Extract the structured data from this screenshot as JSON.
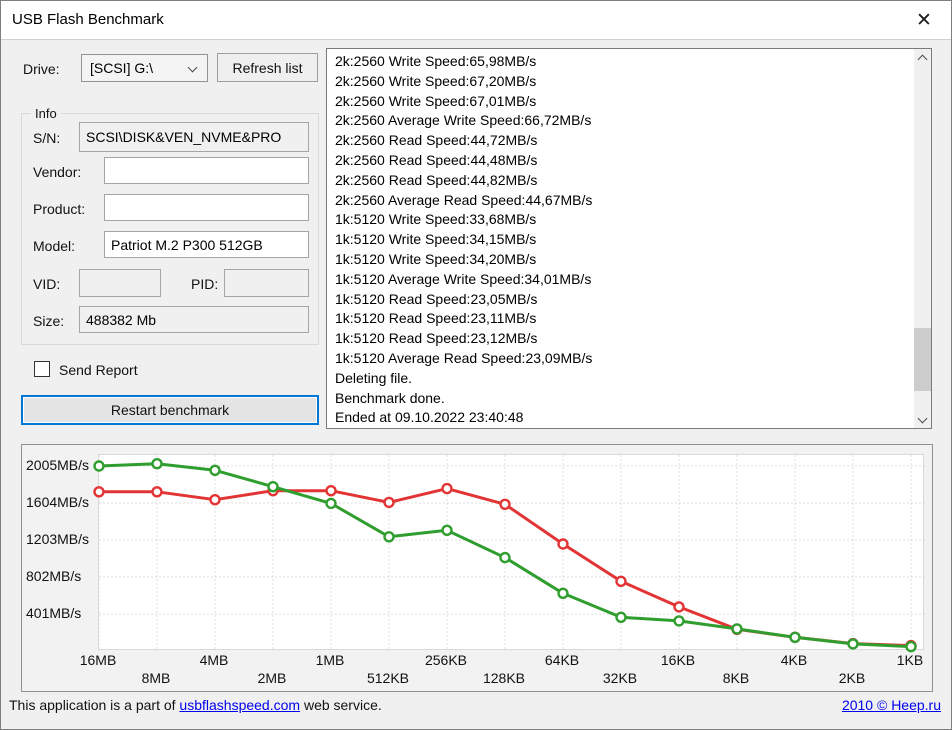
{
  "window": {
    "title": "USB Flash Benchmark",
    "close_glyph": "✕"
  },
  "controls": {
    "drive_label": "Drive:",
    "drive_value": "[SCSI] G:\\",
    "refresh_button": "Refresh list",
    "send_report_label": "Send Report",
    "restart_button": "Restart benchmark"
  },
  "info": {
    "legend": "Info",
    "sn_label": "S/N:",
    "sn_value": "SCSI\\DISK&VEN_NVME&PRO",
    "vendor_label": "Vendor:",
    "vendor_value": "",
    "product_label": "Product:",
    "product_value": "",
    "model_label": "Model:",
    "model_value": "Patriot M.2 P300 512GB",
    "vid_label": "VID:",
    "vid_value": "",
    "pid_label": "PID:",
    "pid_value": "",
    "size_label": "Size:",
    "size_value": "488382 Mb"
  },
  "log": {
    "lines": [
      "2k:2560 Write Speed:65,98MB/s",
      "2k:2560 Write Speed:67,20MB/s",
      "2k:2560 Write Speed:67,01MB/s",
      "2k:2560 Average Write Speed:66,72MB/s",
      "2k:2560 Read Speed:44,72MB/s",
      "2k:2560 Read Speed:44,48MB/s",
      "2k:2560 Read Speed:44,82MB/s",
      "2k:2560 Average Read Speed:44,67MB/s",
      "1k:5120 Write Speed:33,68MB/s",
      "1k:5120 Write Speed:34,15MB/s",
      "1k:5120 Write Speed:34,20MB/s",
      "1k:5120 Average Write Speed:34,01MB/s",
      "1k:5120 Read Speed:23,05MB/s",
      "1k:5120 Read Speed:23,11MB/s",
      "1k:5120 Read Speed:23,12MB/s",
      "1k:5120 Average Read Speed:23,09MB/s",
      "Deleting file.",
      "Benchmark done.",
      "Ended at 09.10.2022 23:40:48"
    ]
  },
  "chart_data": {
    "type": "line",
    "categories": [
      "16MB",
      "8MB",
      "4MB",
      "2MB",
      "1MB",
      "512KB",
      "256KB",
      "128KB",
      "64KB",
      "32KB",
      "16KB",
      "8KB",
      "4KB",
      "2KB",
      "1KB"
    ],
    "series": [
      {
        "name": "red-line",
        "color": "#e23434",
        "values": [
          1725,
          1725,
          1640,
          1737,
          1737,
          1610,
          1760,
          1590,
          1160,
          755,
          478,
          235,
          148,
          80,
          58
        ]
      },
      {
        "name": "green-line",
        "color": "#2f9e2f",
        "values": [
          2005,
          2030,
          1958,
          1780,
          1600,
          1238,
          1308,
          1012,
          625,
          365,
          326,
          240,
          148,
          77,
          48
        ]
      }
    ],
    "title": "",
    "xlabel": "",
    "ylabel": "MB/s",
    "ytick_values": [
      401,
      802,
      1203,
      1604,
      2005
    ],
    "ytick_labels": [
      "401MB/s",
      "802MB/s",
      "1203MB/s",
      "1604MB/s",
      "2005MB/s"
    ],
    "ylim": [
      0,
      2124
    ],
    "grid": "dashed",
    "legend_position": "none"
  },
  "footer": {
    "text_prefix": "This application is a part of ",
    "link": "usbflashspeed.com",
    "text_suffix": " web service.",
    "right_link": "2010 © Heep.ru"
  },
  "colors": {
    "accent": "#0078d7",
    "link": "#0000ee",
    "line_red": "#e23434",
    "line_green": "#2f9e2f"
  }
}
